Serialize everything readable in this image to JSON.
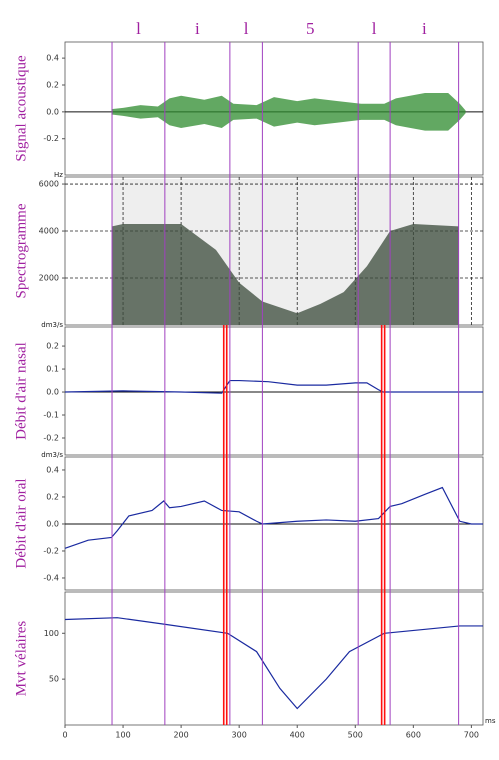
{
  "segments": {
    "labels": [
      "l",
      "i",
      "l",
      "5",
      "l",
      "i"
    ],
    "boundaries": [
      81,
      172,
      284,
      340,
      505,
      560,
      678
    ],
    "color": "#a040c0"
  },
  "closures": {
    "x": [
      276,
      548
    ],
    "color": "#ff1010"
  },
  "chart_data": [
    {
      "type": "envelope",
      "y_label": "Signal acoustique",
      "color": "#2e8b2e",
      "xlim": [
        0,
        720
      ],
      "x": [
        80,
        100,
        130,
        160,
        180,
        200,
        240,
        270,
        290,
        330,
        360,
        400,
        430,
        470,
        510,
        550,
        570,
        620,
        660,
        680,
        690
      ],
      "values": [
        0.02,
        0.03,
        0.05,
        0.04,
        0.1,
        0.12,
        0.09,
        0.12,
        0.06,
        0.05,
        0.11,
        0.08,
        0.1,
        0.08,
        0.06,
        0.06,
        0.1,
        0.14,
        0.14,
        0.06,
        0.01
      ],
      "ylim": [
        -0.47,
        0.52
      ],
      "yticks": [
        0.4,
        0.2,
        {
          "value": 0,
          "label": "0.0"
        },
        -0.2
      ]
    },
    {
      "type": "area",
      "y_label": "Spectrogramme",
      "y_unit": "Hz",
      "color": "#3a4a3a",
      "xlim": [
        0,
        720
      ],
      "grid": true,
      "x": [
        81,
        100,
        170,
        200,
        260,
        300,
        340,
        400,
        440,
        480,
        520,
        560,
        600,
        678
      ],
      "values": [
        4200,
        4300,
        4300,
        4300,
        3200,
        1800,
        1000,
        500,
        900,
        1400,
        2500,
        4000,
        4300,
        4200
      ],
      "ylim": [
        0,
        6300
      ],
      "yticks": [
        2000,
        4000,
        6000
      ],
      "xticks": [
        100,
        200,
        300,
        400,
        500,
        600,
        700
      ]
    },
    {
      "type": "line",
      "y_label": "Débit d'air nasal",
      "y_unit": "dm3/s",
      "color": "#1a2aa0",
      "xlim": [
        0,
        720
      ],
      "x": [
        0,
        100,
        200,
        270,
        284,
        300,
        350,
        400,
        450,
        500,
        520,
        540,
        548,
        600,
        720
      ],
      "values": [
        0,
        0.005,
        0,
        -0.005,
        0.05,
        0.05,
        0.045,
        0.03,
        0.03,
        0.04,
        0.04,
        0.01,
        0,
        0,
        0
      ],
      "ylim": [
        -0.274,
        0.283
      ],
      "yticks": [
        0.2,
        0.1,
        {
          "value": 0,
          "label": "0.0"
        },
        -0.1,
        -0.2
      ]
    },
    {
      "type": "line",
      "y_label": "Débit d'air oral",
      "y_unit": "dm3/s",
      "color": "#1a2aa0",
      "xlim": [
        0,
        720
      ],
      "x": [
        0,
        40,
        80,
        90,
        110,
        150,
        170,
        180,
        200,
        240,
        270,
        300,
        330,
        340,
        400,
        450,
        500,
        540,
        560,
        580,
        620,
        650,
        680,
        700,
        720
      ],
      "values": [
        -0.18,
        -0.12,
        -0.1,
        -0.05,
        0.06,
        0.1,
        0.17,
        0.12,
        0.13,
        0.17,
        0.1,
        0.09,
        0.02,
        0,
        0.02,
        0.03,
        0.02,
        0.04,
        0.13,
        0.15,
        0.22,
        0.27,
        0.02,
        0,
        0
      ],
      "ylim": [
        -0.489,
        0.496
      ],
      "yticks": [
        0.4,
        0.2,
        {
          "value": 0,
          "label": "0.0"
        },
        -0.2,
        -0.4
      ]
    },
    {
      "type": "line",
      "y_label": "Mvt vélaires",
      "x_unit": "ms",
      "color": "#1a2aa0",
      "xlim": [
        0,
        720
      ],
      "x": [
        0,
        90,
        170,
        280,
        330,
        370,
        400,
        450,
        490,
        550,
        680,
        720
      ],
      "values": [
        115,
        117,
        110,
        100,
        80,
        40,
        18,
        50,
        80,
        100,
        108,
        108
      ],
      "ylim": [
        0,
        145
      ],
      "yticks": [
        100,
        50
      ],
      "xticks": [
        0,
        100,
        200,
        300,
        400,
        500,
        600,
        700
      ]
    }
  ]
}
